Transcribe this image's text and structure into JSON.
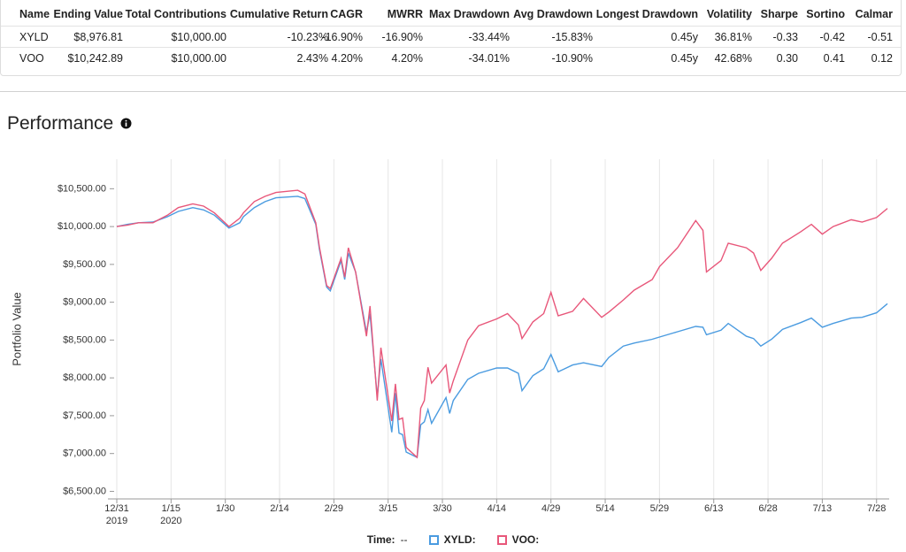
{
  "table": {
    "columns": [
      "Name",
      "Ending Value",
      "Total Contributions",
      "Cumulative Return",
      "CAGR",
      "MWRR",
      "Max Drawdown",
      "Avg Drawdown",
      "Longest Drawdown",
      "Volatility",
      "Sharpe",
      "Sortino",
      "Calmar"
    ],
    "rows": [
      [
        "XYLD",
        "$8,976.81",
        "$10,000.00",
        "-10.23%",
        "-16.90%",
        "-16.90%",
        "-33.44%",
        "-15.83%",
        "0.45y",
        "36.81%",
        "-0.33",
        "-0.42",
        "-0.51"
      ],
      [
        "VOO",
        "$10,242.89",
        "$10,000.00",
        "2.43%",
        "4.20%",
        "4.20%",
        "-34.01%",
        "-10.90%",
        "0.45y",
        "42.68%",
        "0.30",
        "0.41",
        "0.12"
      ]
    ]
  },
  "section_title": "Performance",
  "chart_data": {
    "type": "line",
    "y_label": "Portfolio Value",
    "x": [
      "2019-12-31",
      "2020-01-03",
      "2020-01-06",
      "2020-01-10",
      "2020-01-14",
      "2020-01-17",
      "2020-01-21",
      "2020-01-24",
      "2020-01-27",
      "2020-01-31",
      "2020-02-03",
      "2020-02-04",
      "2020-02-07",
      "2020-02-10",
      "2020-02-13",
      "2020-02-19",
      "2020-02-21",
      "2020-02-24",
      "2020-02-25",
      "2020-02-27",
      "2020-02-28",
      "2020-03-02",
      "2020-03-03",
      "2020-03-04",
      "2020-03-06",
      "2020-03-09",
      "2020-03-10",
      "2020-03-12",
      "2020-03-13",
      "2020-03-16",
      "2020-03-17",
      "2020-03-18",
      "2020-03-19",
      "2020-03-20",
      "2020-03-23",
      "2020-03-24",
      "2020-03-25",
      "2020-03-26",
      "2020-03-27",
      "2020-03-31",
      "2020-04-01",
      "2020-04-02",
      "2020-04-06",
      "2020-04-09",
      "2020-04-14",
      "2020-04-17",
      "2020-04-20",
      "2020-04-21",
      "2020-04-24",
      "2020-04-27",
      "2020-04-29",
      "2020-05-01",
      "2020-05-05",
      "2020-05-08",
      "2020-05-13",
      "2020-05-15",
      "2020-05-19",
      "2020-05-22",
      "2020-05-27",
      "2020-05-29",
      "2020-06-03",
      "2020-06-08",
      "2020-06-10",
      "2020-06-11",
      "2020-06-15",
      "2020-06-17",
      "2020-06-22",
      "2020-06-24",
      "2020-06-26",
      "2020-06-29",
      "2020-07-02",
      "2020-07-07",
      "2020-07-10",
      "2020-07-13",
      "2020-07-16",
      "2020-07-21",
      "2020-07-24",
      "2020-07-28",
      "2020-07-31"
    ],
    "series": [
      {
        "name": "XYLD:",
        "color": "#4a9be0",
        "values": [
          10000,
          10030,
          10050,
          10060,
          10130,
          10200,
          10250,
          10220,
          10150,
          9980,
          10050,
          10130,
          10250,
          10330,
          10380,
          10400,
          10370,
          10030,
          9700,
          9200,
          9150,
          9550,
          9300,
          9650,
          9400,
          8600,
          8850,
          7750,
          8250,
          7280,
          7800,
          7270,
          7250,
          7020,
          6950,
          7380,
          7420,
          7580,
          7400,
          7740,
          7530,
          7700,
          7980,
          8060,
          8130,
          8130,
          8060,
          7830,
          8030,
          8120,
          8310,
          8080,
          8170,
          8200,
          8150,
          8270,
          8420,
          8460,
          8510,
          8540,
          8610,
          8680,
          8670,
          8570,
          8630,
          8720,
          8550,
          8520,
          8420,
          8510,
          8640,
          8730,
          8790,
          8670,
          8720,
          8790,
          8800,
          8860,
          8980
        ]
      },
      {
        "name": "VOO:",
        "color": "#e8577a",
        "values": [
          10000,
          10020,
          10050,
          10050,
          10150,
          10250,
          10300,
          10270,
          10180,
          10000,
          10110,
          10180,
          10330,
          10400,
          10450,
          10480,
          10430,
          10050,
          9730,
          9220,
          9180,
          9580,
          9330,
          9720,
          9400,
          8550,
          8950,
          7700,
          8400,
          7430,
          7920,
          7450,
          7470,
          7080,
          6950,
          7600,
          7700,
          8140,
          7930,
          8170,
          7800,
          7960,
          8500,
          8690,
          8780,
          8850,
          8700,
          8520,
          8740,
          8850,
          9130,
          8820,
          8880,
          9050,
          8800,
          8870,
          9030,
          9160,
          9300,
          9470,
          9720,
          10080,
          9950,
          9400,
          9550,
          9780,
          9720,
          9650,
          9420,
          9580,
          9780,
          9930,
          10030,
          9900,
          10000,
          10090,
          10060,
          10120,
          10240
        ]
      }
    ],
    "xlim": [
      "2019-12-31",
      "2020-07-31"
    ],
    "xticks": [
      {
        "value": "2019-12-31",
        "label": "12/31\n2019"
      },
      {
        "value": "2020-01-15",
        "label": "1/15\n2020"
      },
      {
        "value": "2020-01-30",
        "label": "1/30"
      },
      {
        "value": "2020-02-14",
        "label": "2/14"
      },
      {
        "value": "2020-02-29",
        "label": "2/29"
      },
      {
        "value": "2020-03-15",
        "label": "3/15"
      },
      {
        "value": "2020-03-30",
        "label": "3/30"
      },
      {
        "value": "2020-04-14",
        "label": "4/14"
      },
      {
        "value": "2020-04-29",
        "label": "4/29"
      },
      {
        "value": "2020-05-14",
        "label": "5/14"
      },
      {
        "value": "2020-05-29",
        "label": "5/29"
      },
      {
        "value": "2020-06-13",
        "label": "6/13"
      },
      {
        "value": "2020-06-28",
        "label": "6/28"
      },
      {
        "value": "2020-07-13",
        "label": "7/13"
      },
      {
        "value": "2020-07-28",
        "label": "7/28"
      }
    ],
    "ylim": [
      6400,
      10890
    ],
    "yticks": [
      {
        "value": 6500,
        "label": "$6,500.00"
      },
      {
        "value": 7000,
        "label": "$7,000.00"
      },
      {
        "value": 7500,
        "label": "$7,500.00"
      },
      {
        "value": 8000,
        "label": "$8,000.00"
      },
      {
        "value": 8500,
        "label": "$8,500.00"
      },
      {
        "value": 9000,
        "label": "$9,000.00"
      },
      {
        "value": 9500,
        "label": "$9,500.00"
      },
      {
        "value": 10000,
        "label": "$10,000.00"
      },
      {
        "value": 10500,
        "label": "$10,500.00"
      }
    ],
    "grid": "x",
    "legend": {
      "position": "bottom",
      "time_label": "Time:",
      "time_value": "--"
    }
  }
}
